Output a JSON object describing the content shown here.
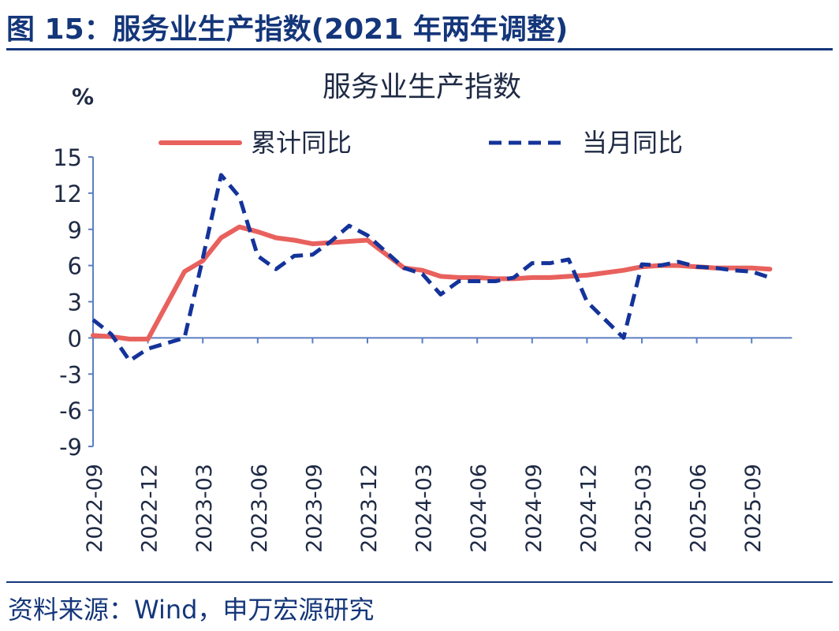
{
  "header": {
    "figure_title": "图 15：服务业生产指数(2021 年两年调整)"
  },
  "footer": {
    "source": "资料来源：Wind，申万宏源研究"
  },
  "colors": {
    "brand": "#14367a",
    "series_cumulative": "#e8615d",
    "series_monthly": "#14339a",
    "axis": "#5b7fc2"
  },
  "chart_data": {
    "type": "line",
    "title": "服务业生产指数",
    "unit_label": "%",
    "xlabel": "",
    "ylabel": "%",
    "ylim": [
      -9,
      15
    ],
    "yticks": [
      15,
      12,
      9,
      6,
      3,
      0,
      -3,
      -6,
      -9
    ],
    "grid": false,
    "legend_position": "top",
    "x": [
      "2022-09",
      "2022-10",
      "2022-11",
      "2022-12",
      "2023-01",
      "2023-02",
      "2023-03",
      "2023-04",
      "2023-05",
      "2023-06",
      "2023-07",
      "2023-08",
      "2023-09",
      "2023-10",
      "2023-11",
      "2023-12",
      "2024-01",
      "2024-02",
      "2024-03",
      "2024-04",
      "2024-05",
      "2024-06",
      "2024-07",
      "2024-08",
      "2024-09",
      "2024-10",
      "2024-11",
      "2024-12",
      "2025-01",
      "2025-02",
      "2025-03",
      "2025-04",
      "2025-05",
      "2025-06",
      "2025-07",
      "2025-08",
      "2025-09",
      "2025-10"
    ],
    "tick_labels": [
      "2022-09",
      "2022-12",
      "2023-03",
      "2023-06",
      "2023-09",
      "2023-12",
      "2024-03",
      "2024-06",
      "2024-09",
      "2024-12",
      "2025-03",
      "2025-06",
      "2025-09"
    ],
    "series": [
      {
        "name": "累计同比",
        "style": "solid",
        "values": [
          0.2,
          0.1,
          -0.1,
          -0.1,
          null,
          5.5,
          6.4,
          8.3,
          9.2,
          8.8,
          8.3,
          8.1,
          7.8,
          7.9,
          8.0,
          8.1,
          null,
          5.8,
          5.6,
          5.1,
          5.0,
          5.0,
          4.9,
          4.9,
          5.0,
          5.0,
          5.1,
          5.2,
          null,
          5.6,
          5.9,
          6.0,
          6.0,
          5.9,
          5.8,
          5.8,
          5.8,
          5.7
        ]
      },
      {
        "name": "当月同比",
        "style": "dashed",
        "values": [
          1.5,
          0.3,
          -1.9,
          -0.9,
          null,
          0.0,
          6.6,
          13.5,
          11.7,
          6.8,
          5.7,
          6.8,
          6.9,
          8.0,
          9.3,
          8.5,
          null,
          5.8,
          5.3,
          3.6,
          4.7,
          4.7,
          4.7,
          5.0,
          6.2,
          6.2,
          6.5,
          3.0,
          null,
          0.0,
          6.1,
          6.0,
          6.3,
          5.9,
          5.8,
          5.6,
          5.5,
          5.0
        ]
      }
    ]
  }
}
